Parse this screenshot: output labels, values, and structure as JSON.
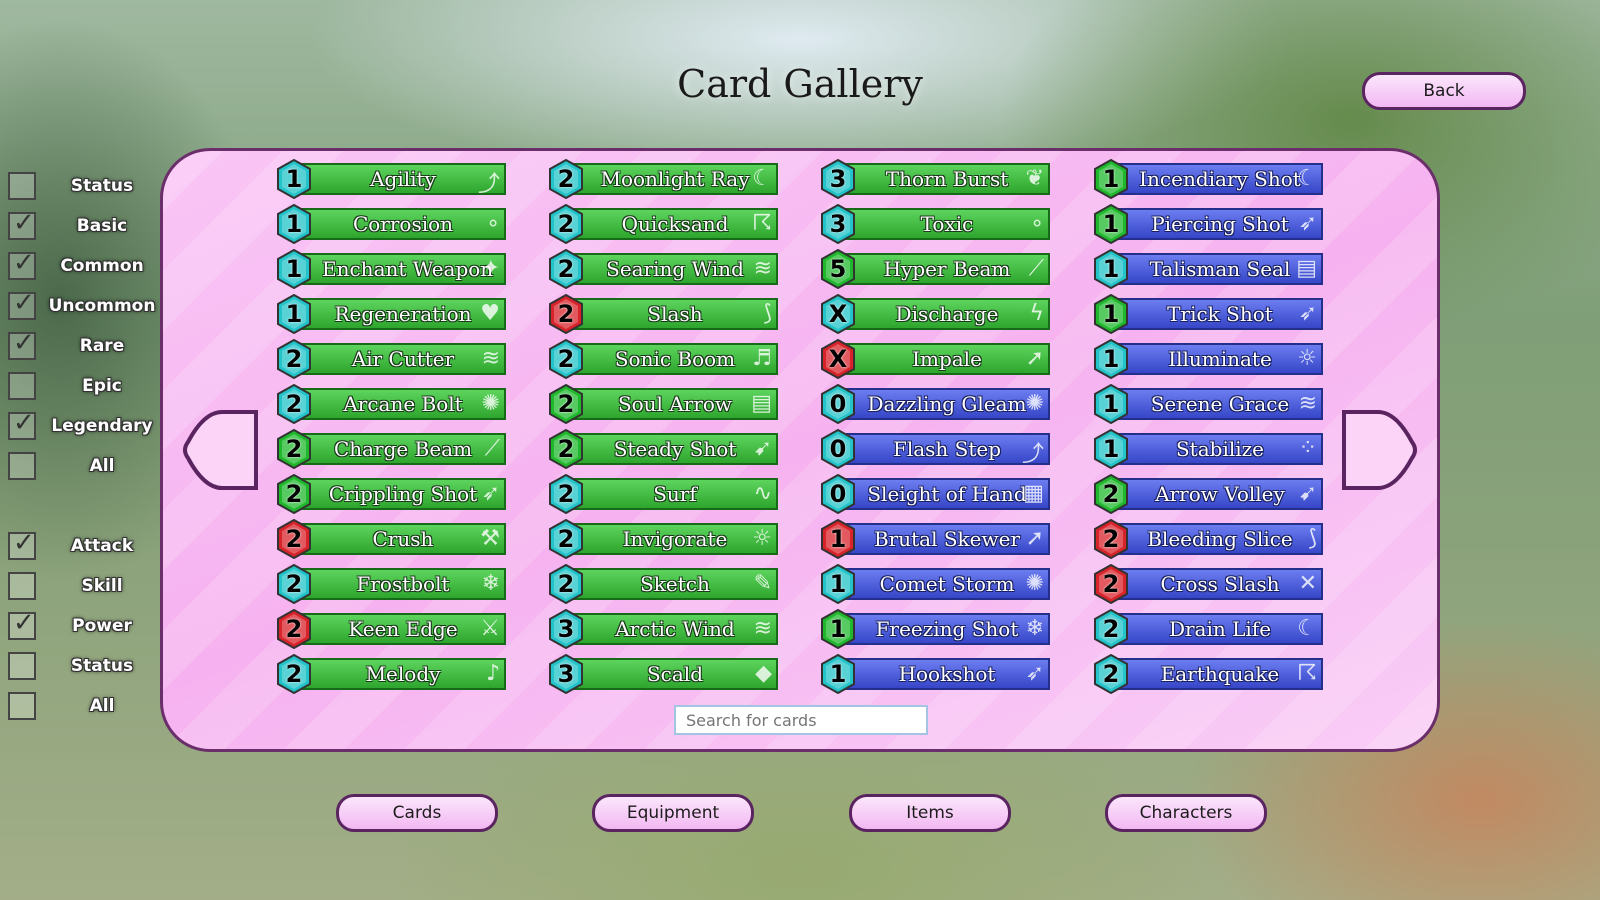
{
  "title": "Card Gallery",
  "back_label": "Back",
  "rarity_filters": [
    {
      "label": "Status",
      "checked": false
    },
    {
      "label": "Basic",
      "checked": true
    },
    {
      "label": "Common",
      "checked": true
    },
    {
      "label": "Uncommon",
      "checked": true
    },
    {
      "label": "Rare",
      "checked": true
    },
    {
      "label": "Epic",
      "checked": false
    },
    {
      "label": "Legendary",
      "checked": true
    },
    {
      "label": "All",
      "checked": false
    }
  ],
  "type_filters": [
    {
      "label": "Attack",
      "checked": true
    },
    {
      "label": "Skill",
      "checked": false
    },
    {
      "label": "Power",
      "checked": true
    },
    {
      "label": "Status",
      "checked": false
    },
    {
      "label": "All",
      "checked": false
    }
  ],
  "colors": {
    "gem_teal": "#22c3c9",
    "gem_green": "#1fb82c",
    "gem_red": "#d8232a"
  },
  "cards": [
    [
      {
        "name": "Agility",
        "cost": "1",
        "gem": "gem_teal",
        "color": "green",
        "icon": "boot-icon"
      },
      {
        "name": "Corrosion",
        "cost": "1",
        "gem": "gem_teal",
        "color": "green",
        "icon": "bubbles-icon"
      },
      {
        "name": "Enchant Weapon",
        "cost": "1",
        "gem": "gem_teal",
        "color": "green",
        "icon": "sparkle-sword-icon"
      },
      {
        "name": "Regeneration",
        "cost": "1",
        "gem": "gem_teal",
        "color": "green",
        "icon": "heart-icon"
      },
      {
        "name": "Air Cutter",
        "cost": "2",
        "gem": "gem_teal",
        "color": "green",
        "icon": "wind-icon"
      },
      {
        "name": "Arcane Bolt",
        "cost": "2",
        "gem": "gem_teal",
        "color": "green",
        "icon": "magic-circle-icon"
      },
      {
        "name": "Charge Beam",
        "cost": "2",
        "gem": "gem_green",
        "color": "green",
        "icon": "beam-icon"
      },
      {
        "name": "Crippling Shot",
        "cost": "2",
        "gem": "gem_green",
        "color": "green",
        "icon": "arrow-icon"
      },
      {
        "name": "Crush",
        "cost": "2",
        "gem": "gem_red",
        "color": "green",
        "icon": "hammer-icon"
      },
      {
        "name": "Frostbolt",
        "cost": "2",
        "gem": "gem_teal",
        "color": "green",
        "icon": "snowflake-icon"
      },
      {
        "name": "Keen Edge",
        "cost": "2",
        "gem": "gem_red",
        "color": "green",
        "icon": "axe-icon"
      },
      {
        "name": "Melody",
        "cost": "2",
        "gem": "gem_teal",
        "color": "green",
        "icon": "music-icon"
      }
    ],
    [
      {
        "name": "Moonlight Ray",
        "cost": "2",
        "gem": "gem_teal",
        "color": "green",
        "icon": "moon-icon"
      },
      {
        "name": "Quicksand",
        "cost": "2",
        "gem": "gem_teal",
        "color": "green",
        "icon": "swirl-icon"
      },
      {
        "name": "Searing Wind",
        "cost": "2",
        "gem": "gem_teal",
        "color": "green",
        "icon": "wind-icon"
      },
      {
        "name": "Slash",
        "cost": "2",
        "gem": "gem_red",
        "color": "green",
        "icon": "slash-icon"
      },
      {
        "name": "Sonic Boom",
        "cost": "2",
        "gem": "gem_teal",
        "color": "green",
        "icon": "sound-icon"
      },
      {
        "name": "Soul Arrow",
        "cost": "2",
        "gem": "gem_green",
        "color": "green",
        "icon": "scroll-icon"
      },
      {
        "name": "Steady Shot",
        "cost": "2",
        "gem": "gem_green",
        "color": "green",
        "icon": "bow-icon"
      },
      {
        "name": "Surf",
        "cost": "2",
        "gem": "gem_teal",
        "color": "green",
        "icon": "wave-icon"
      },
      {
        "name": "Invigorate",
        "cost": "2",
        "gem": "gem_teal",
        "color": "green",
        "icon": "sun-icon"
      },
      {
        "name": "Sketch",
        "cost": "2",
        "gem": "gem_teal",
        "color": "green",
        "icon": "brush-icon"
      },
      {
        "name": "Arctic Wind",
        "cost": "3",
        "gem": "gem_teal",
        "color": "green",
        "icon": "wind-icon"
      },
      {
        "name": "Scald",
        "cost": "3",
        "gem": "gem_teal",
        "color": "green",
        "icon": "drop-icon"
      }
    ],
    [
      {
        "name": "Thorn Burst",
        "cost": "3",
        "gem": "gem_teal",
        "color": "green",
        "icon": "leaf-icon"
      },
      {
        "name": "Toxic",
        "cost": "3",
        "gem": "gem_teal",
        "color": "green",
        "icon": "bubbles-icon"
      },
      {
        "name": "Hyper Beam",
        "cost": "5",
        "gem": "gem_green",
        "color": "green",
        "icon": "beam-icon"
      },
      {
        "name": "Discharge",
        "cost": "X",
        "gem": "gem_teal",
        "color": "green",
        "icon": "lightning-icon"
      },
      {
        "name": "Impale",
        "cost": "X",
        "gem": "gem_red",
        "color": "green",
        "icon": "spear-icon"
      },
      {
        "name": "Dazzling Gleam",
        "cost": "0",
        "gem": "gem_teal",
        "color": "blue",
        "icon": "magic-circle-icon"
      },
      {
        "name": "Flash Step",
        "cost": "0",
        "gem": "gem_teal",
        "color": "blue",
        "icon": "boot-icon"
      },
      {
        "name": "Sleight of Hand",
        "cost": "0",
        "gem": "gem_teal",
        "color": "blue",
        "icon": "cards-icon"
      },
      {
        "name": "Brutal Skewer",
        "cost": "1",
        "gem": "gem_red",
        "color": "blue",
        "icon": "spear-icon"
      },
      {
        "name": "Comet Storm",
        "cost": "1",
        "gem": "gem_teal",
        "color": "blue",
        "icon": "magic-circle-icon"
      },
      {
        "name": "Freezing Shot",
        "cost": "1",
        "gem": "gem_green",
        "color": "blue",
        "icon": "snowflake-icon"
      },
      {
        "name": "Hookshot",
        "cost": "1",
        "gem": "gem_teal",
        "color": "blue",
        "icon": "arrow-icon"
      }
    ],
    [
      {
        "name": "Incendiary Shot",
        "cost": "1",
        "gem": "gem_green",
        "color": "blue",
        "icon": "moon-icon"
      },
      {
        "name": "Piercing Shot",
        "cost": "1",
        "gem": "gem_green",
        "color": "blue",
        "icon": "arrow-icon"
      },
      {
        "name": "Talisman Seal",
        "cost": "1",
        "gem": "gem_teal",
        "color": "blue",
        "icon": "scroll-icon"
      },
      {
        "name": "Trick Shot",
        "cost": "1",
        "gem": "gem_green",
        "color": "blue",
        "icon": "arrow-icon"
      },
      {
        "name": "Illuminate",
        "cost": "1",
        "gem": "gem_teal",
        "color": "blue",
        "icon": "sun-icon"
      },
      {
        "name": "Serene Grace",
        "cost": "1",
        "gem": "gem_teal",
        "color": "blue",
        "icon": "wind-icon"
      },
      {
        "name": "Stabilize",
        "cost": "1",
        "gem": "gem_teal",
        "color": "blue",
        "icon": "dots-ring-icon"
      },
      {
        "name": "Arrow Volley",
        "cost": "2",
        "gem": "gem_green",
        "color": "blue",
        "icon": "bow-icon"
      },
      {
        "name": "Bleeding Slice",
        "cost": "2",
        "gem": "gem_red",
        "color": "blue",
        "icon": "slash-icon"
      },
      {
        "name": "Cross Slash",
        "cost": "2",
        "gem": "gem_red",
        "color": "blue",
        "icon": "cross-swords-icon"
      },
      {
        "name": "Drain Life",
        "cost": "2",
        "gem": "gem_teal",
        "color": "blue",
        "icon": "moon-icon"
      },
      {
        "name": "Earthquake",
        "cost": "2",
        "gem": "gem_teal",
        "color": "blue",
        "icon": "swirl-icon"
      }
    ]
  ],
  "search": {
    "placeholder": "Search for cards",
    "value": ""
  },
  "bottom_tabs": [
    "Cards",
    "Equipment",
    "Items",
    "Characters"
  ]
}
